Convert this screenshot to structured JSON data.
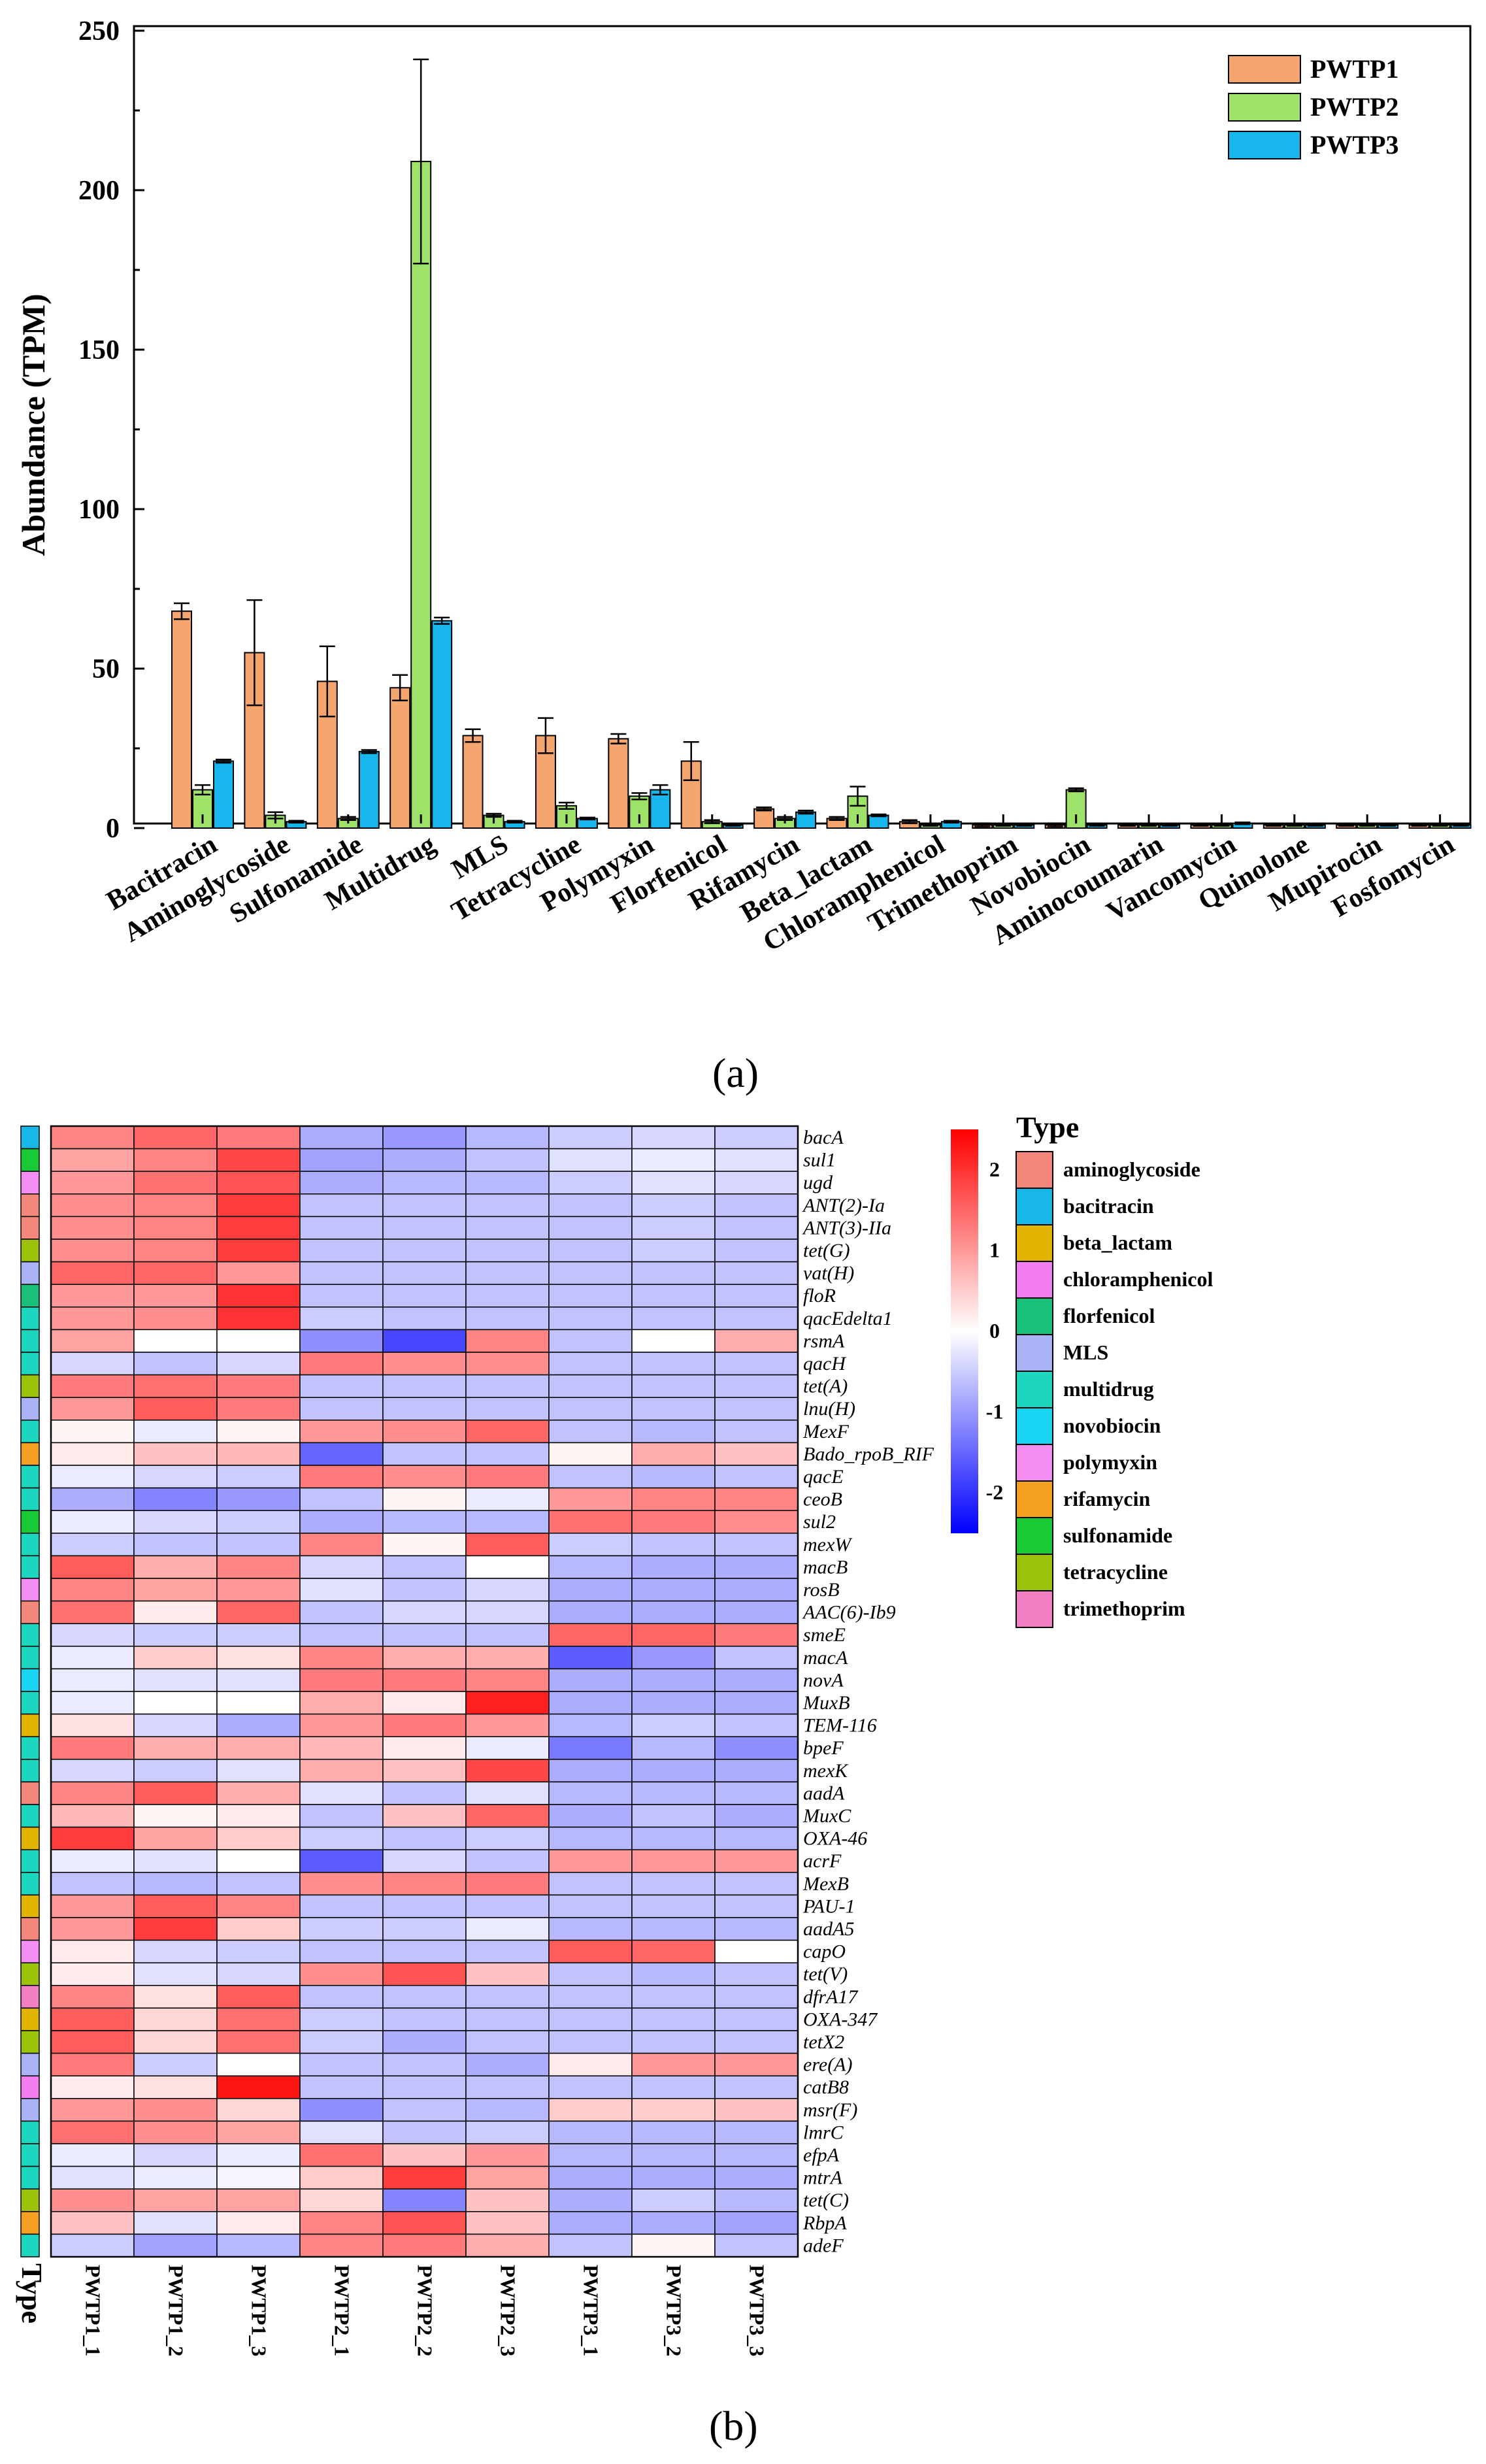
{
  "panel_a_label": "(a)",
  "panel_b_label": "(b)",
  "chart_data": [
    {
      "type": "bar",
      "ylabel": "Abundance (TPM)",
      "xlabel": "",
      "ylim": [
        0,
        250
      ],
      "yticks": [
        0,
        50,
        100,
        150,
        200,
        250
      ],
      "legend_position": "top-right",
      "categories": [
        "Bacitracin",
        "Aminoglycoside",
        "Sulfonamide",
        "Multidrug",
        "MLS",
        "Tetracycline",
        "Polymyxin",
        "Florfenicol",
        "Rifamycin",
        "Beta_lactam",
        "Chloramphenicol",
        "Trimethoprim",
        "Novobiocin",
        "Aminocoumarin",
        "Vancomycin",
        "Quinolone",
        "Mupirocin",
        "Fosfomycin"
      ],
      "series": [
        {
          "name": "PWTP1",
          "color": "#f5a66e",
          "values": [
            68,
            55,
            46,
            44,
            29,
            29,
            28,
            21,
            6,
            3,
            2,
            1,
            1,
            1,
            1,
            1,
            1,
            1
          ],
          "errors": [
            2.5,
            16.5,
            11,
            4,
            2,
            5.5,
            1.5,
            6,
            0.5,
            0.5,
            0.5,
            0.5,
            0.5,
            0.3,
            0.3,
            0.3,
            0.3,
            0.3
          ]
        },
        {
          "name": "PWTP2",
          "color": "#9ee26a",
          "values": [
            12,
            4,
            3,
            209,
            4,
            7,
            10,
            2,
            3,
            10,
            1,
            1,
            12,
            1,
            1,
            1,
            1,
            1
          ],
          "errors": [
            1.5,
            1,
            0.5,
            32,
            0.5,
            1,
            1,
            0.5,
            0.5,
            3,
            0.3,
            0.3,
            0.5,
            0.3,
            0.3,
            0.3,
            0.3,
            0.3
          ]
        },
        {
          "name": "PWTP3",
          "color": "#17b7ee",
          "values": [
            21,
            2,
            24,
            65,
            2,
            3,
            12,
            1,
            5,
            4,
            2,
            1,
            1,
            1,
            1.5,
            1,
            1,
            1
          ],
          "errors": [
            0.5,
            0.3,
            0.5,
            1,
            0.3,
            0.3,
            1.5,
            0.3,
            0.5,
            0.3,
            0.3,
            0.3,
            0.3,
            0.3,
            0.3,
            0.3,
            0.3,
            0.3
          ]
        }
      ]
    },
    {
      "type": "heatmap",
      "xlabel": "Type",
      "samples": [
        "PWTP1_1",
        "PWTP1_2",
        "PWTP1_3",
        "PWTP2_1",
        "PWTP2_2",
        "PWTP2_3",
        "PWTP3_1",
        "PWTP3_2",
        "PWTP3_3"
      ],
      "colorbar": {
        "min": -2.5,
        "max": 2.5,
        "ticks": [
          2,
          1,
          0,
          -1,
          -2
        ],
        "low_color": "#0000ff",
        "mid_color": "#ffffff",
        "high_color": "#ff0000"
      },
      "legend_title": "Type",
      "types": [
        {
          "name": "aminoglycoside",
          "color": "#f4877b"
        },
        {
          "name": "bacitracin",
          "color": "#17b7e8"
        },
        {
          "name": "beta_lactam",
          "color": "#e0b400"
        },
        {
          "name": "chloramphenicol",
          "color": "#f47ef0"
        },
        {
          "name": "florfenicol",
          "color": "#19c07a"
        },
        {
          "name": "MLS",
          "color": "#a9b3f5"
        },
        {
          "name": "multidrug",
          "color": "#1dd6bf"
        },
        {
          "name": "novobiocin",
          "color": "#19d4f2"
        },
        {
          "name": "polymyxin",
          "color": "#f58ef2"
        },
        {
          "name": "rifamycin",
          "color": "#f5a020"
        },
        {
          "name": "sulfonamide",
          "color": "#19c935"
        },
        {
          "name": "tetracycline",
          "color": "#9dc20a"
        },
        {
          "name": "trimethoprim",
          "color": "#f27ec4"
        }
      ],
      "genes": [
        {
          "name": "bacA",
          "type": "bacitracin",
          "values": [
            1.2,
            1.5,
            1.3,
            -0.8,
            -1,
            -0.7,
            -0.5,
            -0.4,
            -0.5
          ]
        },
        {
          "name": "sul1",
          "type": "sulfonamide",
          "values": [
            0.9,
            1.2,
            1.8,
            -0.9,
            -0.8,
            -0.6,
            -0.3,
            -0.2,
            -0.3
          ]
        },
        {
          "name": "ugd",
          "type": "polymyxin",
          "values": [
            1.0,
            1.4,
            1.7,
            -0.8,
            -0.7,
            -0.7,
            -0.5,
            -0.3,
            -0.4
          ]
        },
        {
          "name": "ANT(2)-Ia",
          "type": "aminoglycoside",
          "values": [
            1.1,
            1.2,
            1.9,
            -0.6,
            -0.6,
            -0.6,
            -0.6,
            -0.5,
            -0.6
          ]
        },
        {
          "name": "ANT(3)-IIa",
          "type": "aminoglycoside",
          "values": [
            1.1,
            1.2,
            1.9,
            -0.6,
            -0.6,
            -0.6,
            -0.6,
            -0.5,
            -0.6
          ]
        },
        {
          "name": "tet(G)",
          "type": "tetracycline",
          "values": [
            1.1,
            1.2,
            1.9,
            -0.6,
            -0.6,
            -0.6,
            -0.6,
            -0.5,
            -0.6
          ]
        },
        {
          "name": "vat(H)",
          "type": "MLS",
          "values": [
            1.5,
            1.5,
            1.0,
            -0.6,
            -0.6,
            -0.6,
            -0.6,
            -0.6,
            -0.6
          ]
        },
        {
          "name": "floR",
          "type": "florfenicol",
          "values": [
            1.0,
            1.0,
            2.0,
            -0.6,
            -0.6,
            -0.6,
            -0.6,
            -0.6,
            -0.6
          ]
        },
        {
          "name": "qacEdelta1",
          "type": "multidrug",
          "values": [
            1.0,
            1.1,
            2.0,
            -0.5,
            -0.6,
            -0.6,
            -0.6,
            -0.6,
            -0.6
          ]
        },
        {
          "name": "rsmA",
          "type": "multidrug",
          "values": [
            0.9,
            0,
            0,
            -1.1,
            -1.8,
            1.2,
            -0.6,
            0,
            0.8
          ]
        },
        {
          "name": "qacH",
          "type": "multidrug",
          "values": [
            -0.4,
            -0.6,
            -0.4,
            1.3,
            1.1,
            1.1,
            -0.6,
            -0.6,
            -0.6
          ]
        },
        {
          "name": "tet(A)",
          "type": "tetracycline",
          "values": [
            1.3,
            1.4,
            1.3,
            -0.6,
            -0.6,
            -0.6,
            -0.6,
            -0.6,
            -0.6
          ]
        },
        {
          "name": "lnu(H)",
          "type": "MLS",
          "values": [
            1.0,
            1.6,
            1.3,
            -0.6,
            -0.6,
            -0.6,
            -0.6,
            -0.6,
            -0.6
          ]
        },
        {
          "name": "MexF",
          "type": "multidrug",
          "values": [
            0.1,
            -0.2,
            0.1,
            1.0,
            1.1,
            1.5,
            -0.6,
            -0.7,
            -0.6
          ]
        },
        {
          "name": "Bado_rpoB_RIF",
          "type": "rifamycin",
          "values": [
            0.2,
            0.6,
            0.7,
            -1.5,
            -0.6,
            -0.6,
            0.1,
            0.8,
            0.6
          ]
        },
        {
          "name": "qacE",
          "type": "multidrug",
          "values": [
            -0.2,
            -0.4,
            -0.5,
            1.3,
            1.1,
            1.3,
            -0.6,
            -0.7,
            -0.6
          ]
        },
        {
          "name": "ceoB",
          "type": "multidrug",
          "values": [
            -0.8,
            -1.2,
            -1.0,
            -0.6,
            0.1,
            -0.2,
            1.0,
            1.2,
            1.2
          ]
        },
        {
          "name": "sul2",
          "type": "sulfonamide",
          "values": [
            -0.2,
            -0.4,
            -0.5,
            -0.8,
            -0.7,
            -0.7,
            1.4,
            1.3,
            1.1
          ]
        },
        {
          "name": "mexW",
          "type": "multidrug",
          "values": [
            -0.5,
            -0.6,
            -0.6,
            1.2,
            0.1,
            1.6,
            -0.5,
            -0.6,
            -0.6
          ]
        },
        {
          "name": "macB",
          "type": "multidrug",
          "values": [
            1.6,
            0.8,
            1.2,
            -0.4,
            -0.6,
            0,
            -0.7,
            -0.8,
            -0.8
          ]
        },
        {
          "name": "rosB",
          "type": "polymyxin",
          "values": [
            1.2,
            0.9,
            1.0,
            -0.3,
            -0.6,
            -0.4,
            -0.8,
            -0.8,
            -0.8
          ]
        },
        {
          "name": "AAC(6)-Ib9",
          "type": "aminoglycoside",
          "values": [
            1.4,
            0.2,
            1.5,
            -0.6,
            -0.4,
            -0.4,
            -0.8,
            -0.8,
            -0.8
          ]
        },
        {
          "name": "smeE",
          "type": "multidrug",
          "values": [
            -0.4,
            -0.5,
            -0.5,
            -0.6,
            -0.6,
            -0.6,
            1.5,
            1.5,
            1.3
          ]
        },
        {
          "name": "macA",
          "type": "multidrug",
          "values": [
            -0.2,
            0.5,
            0.3,
            1.2,
            0.8,
            0.8,
            -1.6,
            -1.0,
            -0.6
          ]
        },
        {
          "name": "novA",
          "type": "novobiocin",
          "values": [
            -0.2,
            -0.3,
            -0.3,
            1.3,
            1.3,
            1.2,
            -0.8,
            -0.8,
            -0.8
          ]
        },
        {
          "name": "MuxB",
          "type": "multidrug",
          "values": [
            -0.2,
            0,
            0,
            0.8,
            0.2,
            2.2,
            -0.8,
            -0.8,
            -0.8
          ]
        },
        {
          "name": "TEM-116",
          "type": "beta_lactam",
          "values": [
            0.3,
            -0.4,
            -0.8,
            1.0,
            1.3,
            1.0,
            -0.7,
            -0.5,
            -0.6
          ]
        },
        {
          "name": "bpeF",
          "type": "multidrug",
          "values": [
            1.3,
            0.8,
            0.8,
            0.7,
            0.2,
            -0.2,
            -1.3,
            -0.7,
            -1.1
          ]
        },
        {
          "name": "mexK",
          "type": "multidrug",
          "values": [
            -0.4,
            -0.5,
            -0.3,
            0.8,
            0.6,
            1.8,
            -0.8,
            -0.8,
            -0.8
          ]
        },
        {
          "name": "aadA",
          "type": "aminoglycoside",
          "values": [
            1.2,
            1.6,
            0.8,
            -0.3,
            -0.6,
            -0.3,
            -0.7,
            -0.7,
            -0.7
          ]
        },
        {
          "name": "MuxC",
          "type": "multidrug",
          "values": [
            0.7,
            0.1,
            0.2,
            -0.6,
            0.6,
            1.5,
            -0.8,
            -0.6,
            -0.8
          ]
        },
        {
          "name": "OXA-46",
          "type": "beta_lactam",
          "values": [
            1.9,
            0.9,
            0.5,
            -0.5,
            -0.6,
            -0.5,
            -0.7,
            -0.7,
            -0.7
          ]
        },
        {
          "name": "acrF",
          "type": "multidrug",
          "values": [
            -0.2,
            -0.3,
            0,
            -1.6,
            -0.4,
            -0.6,
            1.0,
            1.0,
            1.0
          ]
        },
        {
          "name": "MexB",
          "type": "multidrug",
          "values": [
            -0.6,
            -0.7,
            -0.6,
            1.1,
            1.2,
            1.3,
            -0.6,
            -0.6,
            -0.6
          ]
        },
        {
          "name": "PAU-1",
          "type": "beta_lactam",
          "values": [
            1.0,
            1.6,
            1.2,
            -0.6,
            -0.6,
            -0.6,
            -0.6,
            -0.6,
            -0.6
          ]
        },
        {
          "name": "aadA5",
          "type": "aminoglycoside",
          "values": [
            1.0,
            1.9,
            0.5,
            -0.5,
            -0.5,
            -0.2,
            -0.7,
            -0.7,
            -0.7
          ]
        },
        {
          "name": "capO",
          "type": "polymyxin",
          "values": [
            0.2,
            -0.4,
            -0.5,
            -0.6,
            -0.6,
            -0.6,
            1.6,
            1.5,
            0
          ]
        },
        {
          "name": "tet(V)",
          "type": "tetracycline",
          "values": [
            0.2,
            -0.3,
            -0.4,
            1.1,
            1.7,
            0.6,
            -0.6,
            -0.7,
            -0.6
          ]
        },
        {
          "name": "dfrA17",
          "type": "trimethoprim",
          "values": [
            1.2,
            0.3,
            1.6,
            -0.6,
            -0.6,
            -0.6,
            -0.6,
            -0.6,
            -0.6
          ]
        },
        {
          "name": "OXA-347",
          "type": "beta_lactam",
          "values": [
            1.6,
            0.4,
            1.4,
            -0.5,
            -0.6,
            -0.6,
            -0.6,
            -0.6,
            -0.6
          ]
        },
        {
          "name": "tetX2",
          "type": "tetracycline",
          "values": [
            1.6,
            0.4,
            1.4,
            -0.5,
            -0.8,
            -0.6,
            -0.6,
            -0.6,
            -0.6
          ]
        },
        {
          "name": "ere(A)",
          "type": "MLS",
          "values": [
            1.3,
            -0.5,
            0,
            -0.6,
            -0.6,
            -0.8,
            0.2,
            1.0,
            1.0
          ]
        },
        {
          "name": "catB8",
          "type": "chloramphenicol",
          "values": [
            0.2,
            0.3,
            2.3,
            -0.6,
            -0.6,
            -0.6,
            -0.6,
            -0.6,
            -0.6
          ]
        },
        {
          "name": "msr(F)",
          "type": "MLS",
          "values": [
            1.0,
            1.1,
            0.4,
            -1.1,
            -0.6,
            -0.7,
            0.5,
            0.5,
            0.6
          ]
        },
        {
          "name": "lmrC",
          "type": "multidrug",
          "values": [
            1.4,
            1.1,
            0.9,
            -0.3,
            -0.6,
            -0.5,
            -0.7,
            -0.7,
            -0.7
          ]
        },
        {
          "name": "efpA",
          "type": "multidrug",
          "values": [
            -0.2,
            -0.4,
            -0.2,
            1.4,
            0.6,
            1.0,
            -0.7,
            -0.7,
            -0.7
          ]
        },
        {
          "name": "mtrA",
          "type": "multidrug",
          "values": [
            -0.3,
            -0.2,
            -0.1,
            0.5,
            1.9,
            0.9,
            -0.8,
            -0.8,
            -0.8
          ]
        },
        {
          "name": "tet(C)",
          "type": "tetracycline",
          "values": [
            1.1,
            0.9,
            0.9,
            0.4,
            -1.2,
            0.6,
            -0.8,
            -0.5,
            -0.7
          ]
        },
        {
          "name": "RbpA",
          "type": "rifamycin",
          "values": [
            0.6,
            -0.3,
            0.2,
            1.2,
            1.7,
            0.6,
            -0.8,
            -0.8,
            -0.9
          ]
        },
        {
          "name": "adeF",
          "type": "multidrug",
          "values": [
            -0.5,
            -0.9,
            -0.7,
            1.2,
            1.3,
            0.8,
            -0.6,
            0.1,
            -0.6
          ]
        }
      ]
    }
  ]
}
